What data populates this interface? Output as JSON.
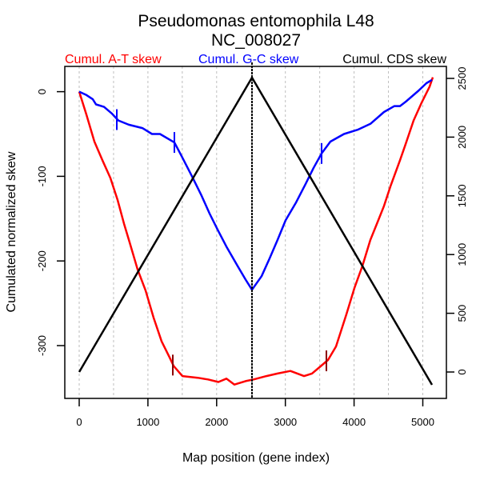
{
  "chart_data": {
    "type": "line",
    "title": "Pseudomonas entomophila L48",
    "subtitle": "NC_008027",
    "xlabel": "Map position (gene index)",
    "ylabel": "Cumulated normalized skew",
    "xlim": [
      -200,
      5350
    ],
    "ylim": [
      -360,
      30
    ],
    "y2lim": [
      -250,
      2600
    ],
    "x_ticks": [
      0,
      1000,
      2000,
      3000,
      4000,
      5000
    ],
    "x_tick_labels": [
      "0",
      "1000",
      "2000",
      "3000",
      "4000",
      "5000"
    ],
    "y_ticks": [
      0,
      -100,
      -200,
      -300
    ],
    "y_tick_labels": [
      "0",
      "-100",
      "-200",
      "-300"
    ],
    "y2_ticks": [
      0,
      500,
      1000,
      1500,
      2000,
      2500
    ],
    "y2_tick_labels": [
      "0",
      "500",
      "1000",
      "1500",
      "2000",
      "2500"
    ],
    "x_grid": [
      0,
      500,
      1000,
      1500,
      2000,
      3000,
      3500,
      4000,
      4500,
      5000
    ],
    "grid": true,
    "legend_position": "top",
    "terminus_marker_x": 2514,
    "series": [
      {
        "name": "Cumul. A-T skew",
        "color": "#ff0000",
        "axis": "left",
        "x": [
          0,
          105,
          221,
          338,
          454,
          559,
          652,
          733,
          850,
          966,
          1083,
          1199,
          1315,
          1374,
          1502,
          1723,
          1874,
          2026,
          2142,
          2258,
          2421,
          2538,
          2724,
          2887,
          3073,
          3271,
          3388,
          3504,
          3620,
          3737,
          3888,
          4005,
          4121,
          4237,
          4342,
          4435,
          4529,
          4668,
          4750,
          4866,
          4983,
          5099,
          5146
        ],
        "y": [
          0,
          -27,
          -59,
          -81,
          -102,
          -128,
          -156,
          -178,
          -210,
          -235,
          -267,
          -295,
          -314,
          -324,
          -336,
          -338,
          -340,
          -343,
          -339,
          -346,
          -342,
          -340,
          -336,
          -333,
          -330,
          -336,
          -333,
          -325,
          -317,
          -301,
          -263,
          -232,
          -206,
          -175,
          -154,
          -135,
          -112,
          -81,
          -62,
          -34,
          -13,
          6,
          17
        ],
        "markers": [
          {
            "x": 1362,
            "y": -323
          },
          {
            "x": 3597,
            "y": -318
          }
        ],
        "marker_color": "#8b0000"
      },
      {
        "name": "Cumul. G-C skew",
        "color": "#0000ff",
        "axis": "left",
        "x": [
          0,
          105,
          198,
          244,
          361,
          477,
          570,
          722,
          920,
          1059,
          1176,
          1385,
          1502,
          1641,
          1781,
          1898,
          2014,
          2142,
          2305,
          2421,
          2514,
          2654,
          2771,
          2887,
          3004,
          3155,
          3295,
          3411,
          3527,
          3655,
          3853,
          4051,
          4237,
          4435,
          4587,
          4668,
          4750,
          4936,
          5052,
          5134
        ],
        "y": [
          0,
          -4,
          -9,
          -15,
          -18,
          -26,
          -34,
          -39,
          -43,
          -50,
          -50,
          -60,
          -78,
          -100,
          -123,
          -144,
          -163,
          -183,
          -206,
          -222,
          -234,
          -218,
          -197,
          -175,
          -152,
          -131,
          -109,
          -90,
          -73,
          -59,
          -50,
          -45,
          -38,
          -24,
          -17,
          -17,
          -12,
          1,
          10,
          14
        ],
        "markers": [
          {
            "x": 547,
            "y": -33
          },
          {
            "x": 1385,
            "y": -60
          },
          {
            "x": 3527,
            "y": -73
          }
        ],
        "marker_color": "#0000ff"
      },
      {
        "name": "Cumul. CDS skew",
        "color": "#000000",
        "axis": "right",
        "x": [
          0,
          2514,
          5134
        ],
        "y": [
          0,
          2507,
          -109
        ],
        "markers": []
      }
    ]
  }
}
